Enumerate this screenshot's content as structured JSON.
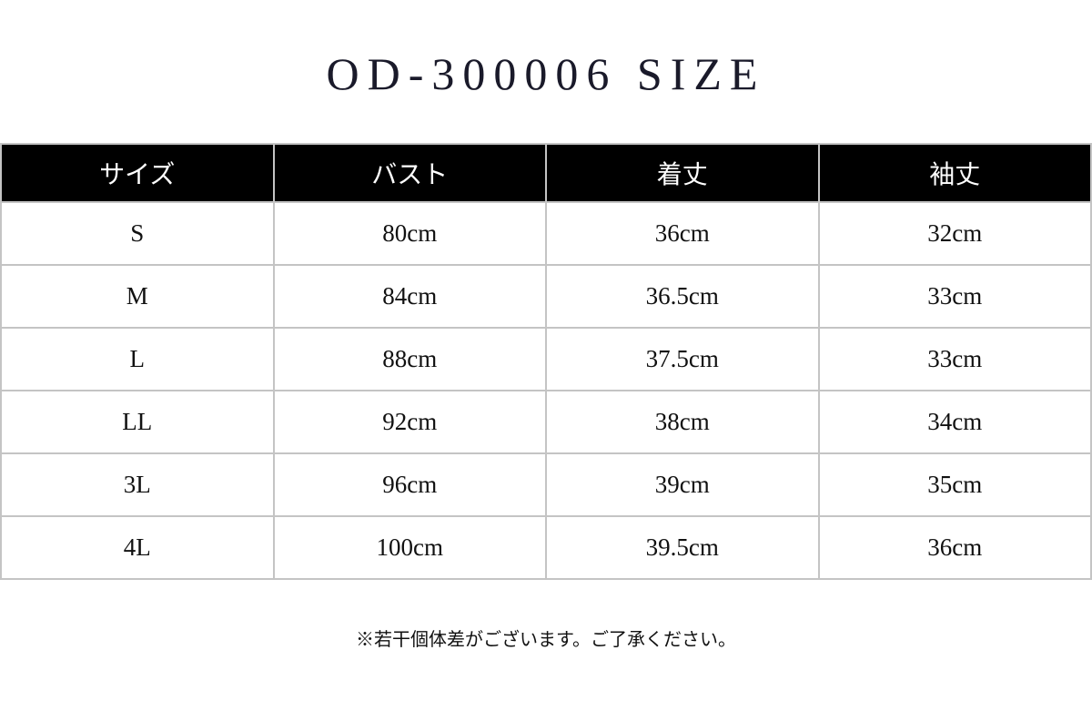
{
  "title": "OD-300006 SIZE",
  "table": {
    "headers": [
      "サイズ",
      "バスト",
      "着丈",
      "袖丈"
    ],
    "rows": [
      [
        "S",
        "80cm",
        "36cm",
        "32cm"
      ],
      [
        "M",
        "84cm",
        "36.5cm",
        "33cm"
      ],
      [
        "L",
        "88cm",
        "37.5cm",
        "33cm"
      ],
      [
        "LL",
        "92cm",
        "38cm",
        "34cm"
      ],
      [
        "3L",
        "96cm",
        "39cm",
        "35cm"
      ],
      [
        "4L",
        "100cm",
        "39.5cm",
        "36cm"
      ]
    ]
  },
  "note": "※若干個体差がございます。ご了承ください。"
}
